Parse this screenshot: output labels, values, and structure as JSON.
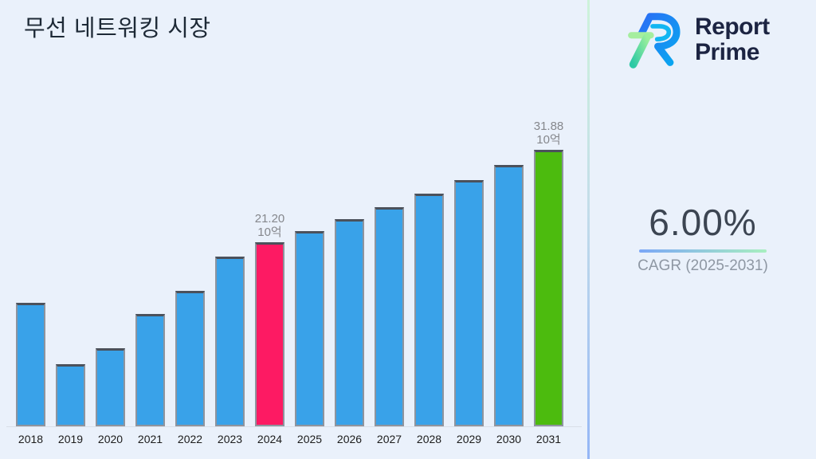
{
  "page": {
    "background": "#EAF1FB",
    "title": "무선 네트워킹 시장"
  },
  "logo": {
    "name": "Report Prime",
    "line1": "Report",
    "line2": "Prime",
    "text_color": "#1C2442",
    "mark_colors": {
      "blue_start": "#2B6EF5",
      "blue_end": "#08A8F0",
      "green_start": "#9BEF9C",
      "green_end": "#2CC9A5"
    }
  },
  "right_panel": {
    "cagr_value": "6.00%",
    "cagr_label": "CAGR (2025-2031)",
    "underline_gradient": [
      "#7BA7F7",
      "#A8EFC0"
    ]
  },
  "chart_data": {
    "type": "bar",
    "title": "무선 네트워킹 시장",
    "xlabel": "",
    "ylabel": "",
    "unit_label": "10억",
    "categories": [
      "2018",
      "2019",
      "2020",
      "2021",
      "2022",
      "2023",
      "2024",
      "2025",
      "2026",
      "2027",
      "2028",
      "2029",
      "2030",
      "2031"
    ],
    "values": [
      14.2,
      7.2,
      9.0,
      12.9,
      15.6,
      19.5,
      21.2,
      22.47,
      23.82,
      25.25,
      26.77,
      28.37,
      30.08,
      31.88
    ],
    "ylim": [
      0,
      35
    ],
    "grid": false,
    "legend": false,
    "bar_color": "#39A2E9",
    "highlights": [
      {
        "category": "2024",
        "color": "#FD1A63"
      },
      {
        "category": "2031",
        "color": "#4CBB0E"
      }
    ],
    "data_labels": [
      {
        "category": "2024",
        "value_text": "21.20",
        "unit_text": "10억"
      },
      {
        "category": "2031",
        "value_text": "31.88",
        "unit_text": "10억"
      }
    ]
  }
}
